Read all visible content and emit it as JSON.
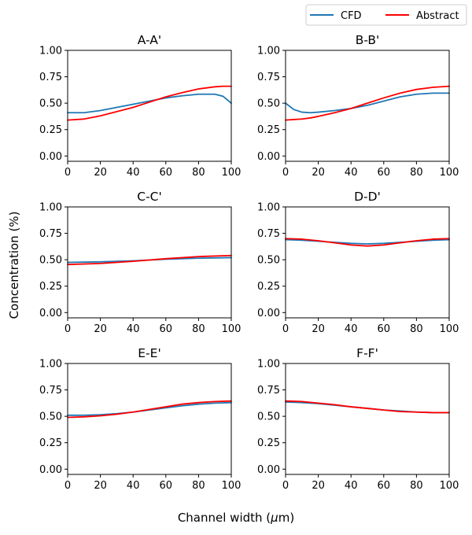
{
  "figure": {
    "ylabel": "Concentration (%)",
    "xlabel": "Channel width ($\\mu$m)",
    "xlabel_text": "Channel width (",
    "xlabel_mu": "μ",
    "xlabel_tail": "m)"
  },
  "legend": {
    "placement": "top-right",
    "entries": [
      {
        "name": "CFD",
        "color": "#1f77b4"
      },
      {
        "name": "Abstract",
        "color": "#ff0000"
      }
    ]
  },
  "chart_data": [
    {
      "type": "line",
      "title": "A-A'",
      "xlim": [
        0,
        100
      ],
      "ylim": [
        -0.05,
        1.0
      ],
      "xticks": [
        "0",
        "20",
        "40",
        "60",
        "80",
        "100"
      ],
      "yticks": [
        "0.00",
        "0.25",
        "0.50",
        "0.75",
        "1.00"
      ],
      "x": [
        0,
        10,
        20,
        30,
        40,
        50,
        60,
        70,
        80,
        90,
        95,
        100
      ],
      "series": [
        {
          "name": "CFD",
          "values": [
            0.41,
            0.41,
            0.43,
            0.46,
            0.49,
            0.52,
            0.55,
            0.57,
            0.585,
            0.585,
            0.565,
            0.5
          ]
        },
        {
          "name": "Abstract",
          "values": [
            0.34,
            0.35,
            0.38,
            0.42,
            0.46,
            0.51,
            0.56,
            0.6,
            0.635,
            0.655,
            0.66,
            0.66
          ]
        }
      ]
    },
    {
      "type": "line",
      "title": "B-B'",
      "xlim": [
        0,
        100
      ],
      "ylim": [
        -0.05,
        1.0
      ],
      "xticks": [
        "0",
        "20",
        "40",
        "60",
        "80",
        "100"
      ],
      "yticks": [
        "0.00",
        "0.25",
        "0.50",
        "0.75",
        "1.00"
      ],
      "x": [
        0,
        5,
        10,
        15,
        20,
        30,
        40,
        50,
        60,
        70,
        80,
        90,
        100
      ],
      "series": [
        {
          "name": "CFD",
          "values": [
            0.5,
            0.44,
            0.415,
            0.41,
            0.415,
            0.43,
            0.45,
            0.48,
            0.52,
            0.56,
            0.585,
            0.595,
            0.595
          ]
        },
        {
          "name": "Abstract",
          "values": [
            0.34,
            0.345,
            0.35,
            0.36,
            0.375,
            0.41,
            0.45,
            0.5,
            0.55,
            0.595,
            0.63,
            0.65,
            0.66
          ]
        }
      ]
    },
    {
      "type": "line",
      "title": "C-C'",
      "xlim": [
        0,
        100
      ],
      "ylim": [
        -0.05,
        1.0
      ],
      "xticks": [
        "0",
        "20",
        "40",
        "60",
        "80",
        "100"
      ],
      "yticks": [
        "0.00",
        "0.25",
        "0.50",
        "0.75",
        "1.00"
      ],
      "x": [
        0,
        20,
        40,
        60,
        80,
        100
      ],
      "series": [
        {
          "name": "CFD",
          "values": [
            0.475,
            0.48,
            0.49,
            0.505,
            0.515,
            0.52
          ]
        },
        {
          "name": "Abstract",
          "values": [
            0.455,
            0.465,
            0.485,
            0.51,
            0.53,
            0.54
          ]
        }
      ]
    },
    {
      "type": "line",
      "title": "D-D'",
      "xlim": [
        0,
        100
      ],
      "ylim": [
        -0.05,
        1.0
      ],
      "xticks": [
        "0",
        "20",
        "40",
        "60",
        "80",
        "100"
      ],
      "yticks": [
        "0.00",
        "0.25",
        "0.50",
        "0.75",
        "1.00"
      ],
      "x": [
        0,
        10,
        20,
        30,
        40,
        50,
        60,
        70,
        80,
        90,
        100
      ],
      "series": [
        {
          "name": "CFD",
          "values": [
            0.69,
            0.685,
            0.675,
            0.665,
            0.655,
            0.65,
            0.655,
            0.665,
            0.675,
            0.685,
            0.69
          ]
        },
        {
          "name": "Abstract",
          "values": [
            0.7,
            0.695,
            0.68,
            0.66,
            0.64,
            0.63,
            0.64,
            0.66,
            0.68,
            0.695,
            0.7
          ]
        }
      ]
    },
    {
      "type": "line",
      "title": "E-E'",
      "xlim": [
        0,
        100
      ],
      "ylim": [
        -0.05,
        1.0
      ],
      "xticks": [
        "0",
        "20",
        "40",
        "60",
        "80",
        "100"
      ],
      "yticks": [
        "0.00",
        "0.25",
        "0.50",
        "0.75",
        "1.00"
      ],
      "x": [
        0,
        10,
        20,
        30,
        40,
        50,
        60,
        70,
        80,
        90,
        100
      ],
      "series": [
        {
          "name": "CFD",
          "values": [
            0.51,
            0.51,
            0.515,
            0.525,
            0.54,
            0.56,
            0.58,
            0.6,
            0.615,
            0.625,
            0.63
          ]
        },
        {
          "name": "Abstract",
          "values": [
            0.49,
            0.495,
            0.505,
            0.52,
            0.54,
            0.565,
            0.59,
            0.615,
            0.63,
            0.64,
            0.645
          ]
        }
      ]
    },
    {
      "type": "line",
      "title": "F-F'",
      "xlim": [
        0,
        100
      ],
      "ylim": [
        -0.05,
        1.0
      ],
      "xticks": [
        "0",
        "20",
        "40",
        "60",
        "80",
        "100"
      ],
      "yticks": [
        "0.00",
        "0.25",
        "0.50",
        "0.75",
        "1.00"
      ],
      "x": [
        0,
        10,
        20,
        30,
        40,
        50,
        60,
        70,
        80,
        90,
        100
      ],
      "series": [
        {
          "name": "CFD",
          "values": [
            0.635,
            0.63,
            0.62,
            0.605,
            0.59,
            0.575,
            0.56,
            0.55,
            0.54,
            0.535,
            0.535
          ]
        },
        {
          "name": "Abstract",
          "values": [
            0.645,
            0.64,
            0.625,
            0.61,
            0.59,
            0.575,
            0.56,
            0.545,
            0.54,
            0.535,
            0.535
          ]
        }
      ]
    }
  ]
}
